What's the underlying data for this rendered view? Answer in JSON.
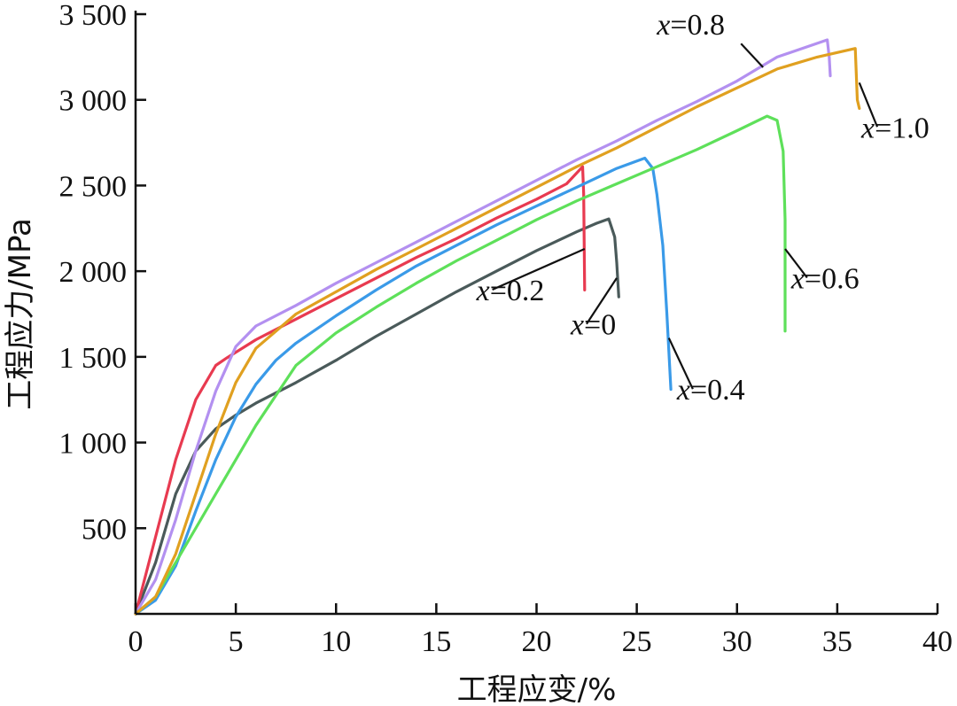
{
  "chart_data": {
    "type": "line",
    "title": "",
    "xlabel": "工程应变/%",
    "ylabel": "工程应力/MPa",
    "xlim": [
      0,
      40
    ],
    "ylim": [
      0,
      3500
    ],
    "x_ticks": [
      0,
      5,
      10,
      15,
      20,
      25,
      30,
      35,
      40
    ],
    "x_tick_labels": [
      "0",
      "5",
      "10",
      "15",
      "20",
      "25",
      "30",
      "35",
      "40"
    ],
    "y_ticks": [
      500,
      1000,
      1500,
      2000,
      2500,
      3000,
      3500
    ],
    "y_tick_labels": [
      "500",
      "1 000",
      "1 500",
      "2 000",
      "2 500",
      "3 000",
      "3 500"
    ],
    "grid": false,
    "series": [
      {
        "name": "x=0",
        "label_var": "x",
        "label_value": "=0",
        "color": "#4a5a5a",
        "x": [
          0,
          1,
          2,
          3,
          4,
          5,
          6,
          8,
          10,
          12,
          14,
          16,
          18,
          20,
          22,
          23,
          23.6,
          23.9,
          24.0,
          24.1
        ],
        "y": [
          0,
          300,
          700,
          950,
          1080,
          1160,
          1230,
          1350,
          1480,
          1620,
          1750,
          1880,
          2000,
          2120,
          2230,
          2280,
          2305,
          2200,
          2050,
          1850
        ]
      },
      {
        "name": "x=0.2",
        "label_var": "x",
        "label_value": "=0.2",
        "color": "#e83a50",
        "x": [
          0,
          1,
          2,
          3,
          4,
          4.5,
          6,
          8,
          10,
          12,
          14,
          16,
          18,
          20,
          21.5,
          22.3,
          22.35,
          22.4
        ],
        "y": [
          0,
          450,
          900,
          1250,
          1450,
          1490,
          1600,
          1720,
          1840,
          1960,
          2080,
          2190,
          2310,
          2420,
          2510,
          2610,
          2450,
          1890
        ]
      },
      {
        "name": "x=0.4",
        "label_var": "x",
        "label_value": "=0.4",
        "color": "#3a9ae8",
        "x": [
          0,
          1,
          2,
          3,
          4,
          5,
          6,
          7,
          8,
          10,
          12,
          14,
          16,
          18,
          20,
          22,
          24,
          25.4,
          25.8,
          26.0,
          26.3,
          26.5,
          26.7
        ],
        "y": [
          0,
          80,
          280,
          600,
          900,
          1150,
          1340,
          1480,
          1580,
          1740,
          1890,
          2030,
          2150,
          2270,
          2380,
          2490,
          2600,
          2660,
          2600,
          2450,
          2150,
          1750,
          1310
        ]
      },
      {
        "name": "x=0.6",
        "label_var": "x",
        "label_value": "=0.6",
        "color": "#5ee05a",
        "x": [
          0,
          1,
          2,
          4,
          6,
          8,
          10,
          12,
          14,
          16,
          18,
          20,
          22,
          24,
          26,
          28,
          30,
          31.5,
          32.0,
          32.3,
          32.4,
          32.4
        ],
        "y": [
          0,
          100,
          300,
          700,
          1100,
          1450,
          1640,
          1790,
          1930,
          2060,
          2180,
          2300,
          2410,
          2510,
          2610,
          2710,
          2820,
          2905,
          2880,
          2700,
          2300,
          1650
        ]
      },
      {
        "name": "x=0.8",
        "label_var": "x",
        "label_value": "=0.8",
        "color": "#b390f0",
        "x": [
          0,
          1,
          2,
          3,
          4,
          5,
          6,
          8,
          10,
          12,
          14,
          16,
          18,
          20,
          22,
          24,
          26,
          28,
          30,
          32,
          34.5,
          34.6,
          34.65
        ],
        "y": [
          0,
          200,
          550,
          950,
          1300,
          1560,
          1680,
          1800,
          1930,
          2050,
          2170,
          2290,
          2410,
          2530,
          2650,
          2760,
          2880,
          2990,
          3110,
          3250,
          3350,
          3250,
          3140
        ]
      },
      {
        "name": "x=1.0",
        "label_var": "x",
        "label_value": "=1.0",
        "color": "#e0a020",
        "x": [
          0,
          1,
          2,
          3,
          4,
          5,
          6,
          8,
          10,
          12,
          14,
          16,
          18,
          20,
          22,
          24,
          26,
          28,
          30,
          32,
          34,
          35.9,
          36.0,
          36.1
        ],
        "y": [
          0,
          100,
          350,
          700,
          1050,
          1350,
          1550,
          1750,
          1880,
          2010,
          2130,
          2250,
          2370,
          2490,
          2610,
          2720,
          2840,
          2960,
          3070,
          3180,
          3250,
          3300,
          3000,
          2950
        ]
      }
    ],
    "annotations": [
      {
        "series": "x=0.8",
        "point": [
          31.3,
          3190
        ],
        "text_pos": [
          26.0,
          3380
        ],
        "anchor": "start"
      },
      {
        "series": "x=1.0",
        "point": [
          36.1,
          3100
        ],
        "text_pos": [
          36.2,
          2780
        ],
        "anchor": "start"
      },
      {
        "series": "x=0.6",
        "point": [
          32.4,
          2130
        ],
        "text_pos": [
          32.7,
          1900
        ],
        "anchor": "start"
      },
      {
        "series": "x=0.4",
        "point": [
          26.6,
          1610
        ],
        "text_pos": [
          27.0,
          1250
        ],
        "anchor": "start"
      },
      {
        "series": "x=0.2",
        "point": [
          22.4,
          2130
        ],
        "text_pos": [
          17.0,
          1830
        ],
        "anchor": "start"
      },
      {
        "series": "x=0",
        "point": [
          24.0,
          1960
        ],
        "text_pos": [
          21.7,
          1630
        ],
        "anchor": "start"
      }
    ]
  }
}
